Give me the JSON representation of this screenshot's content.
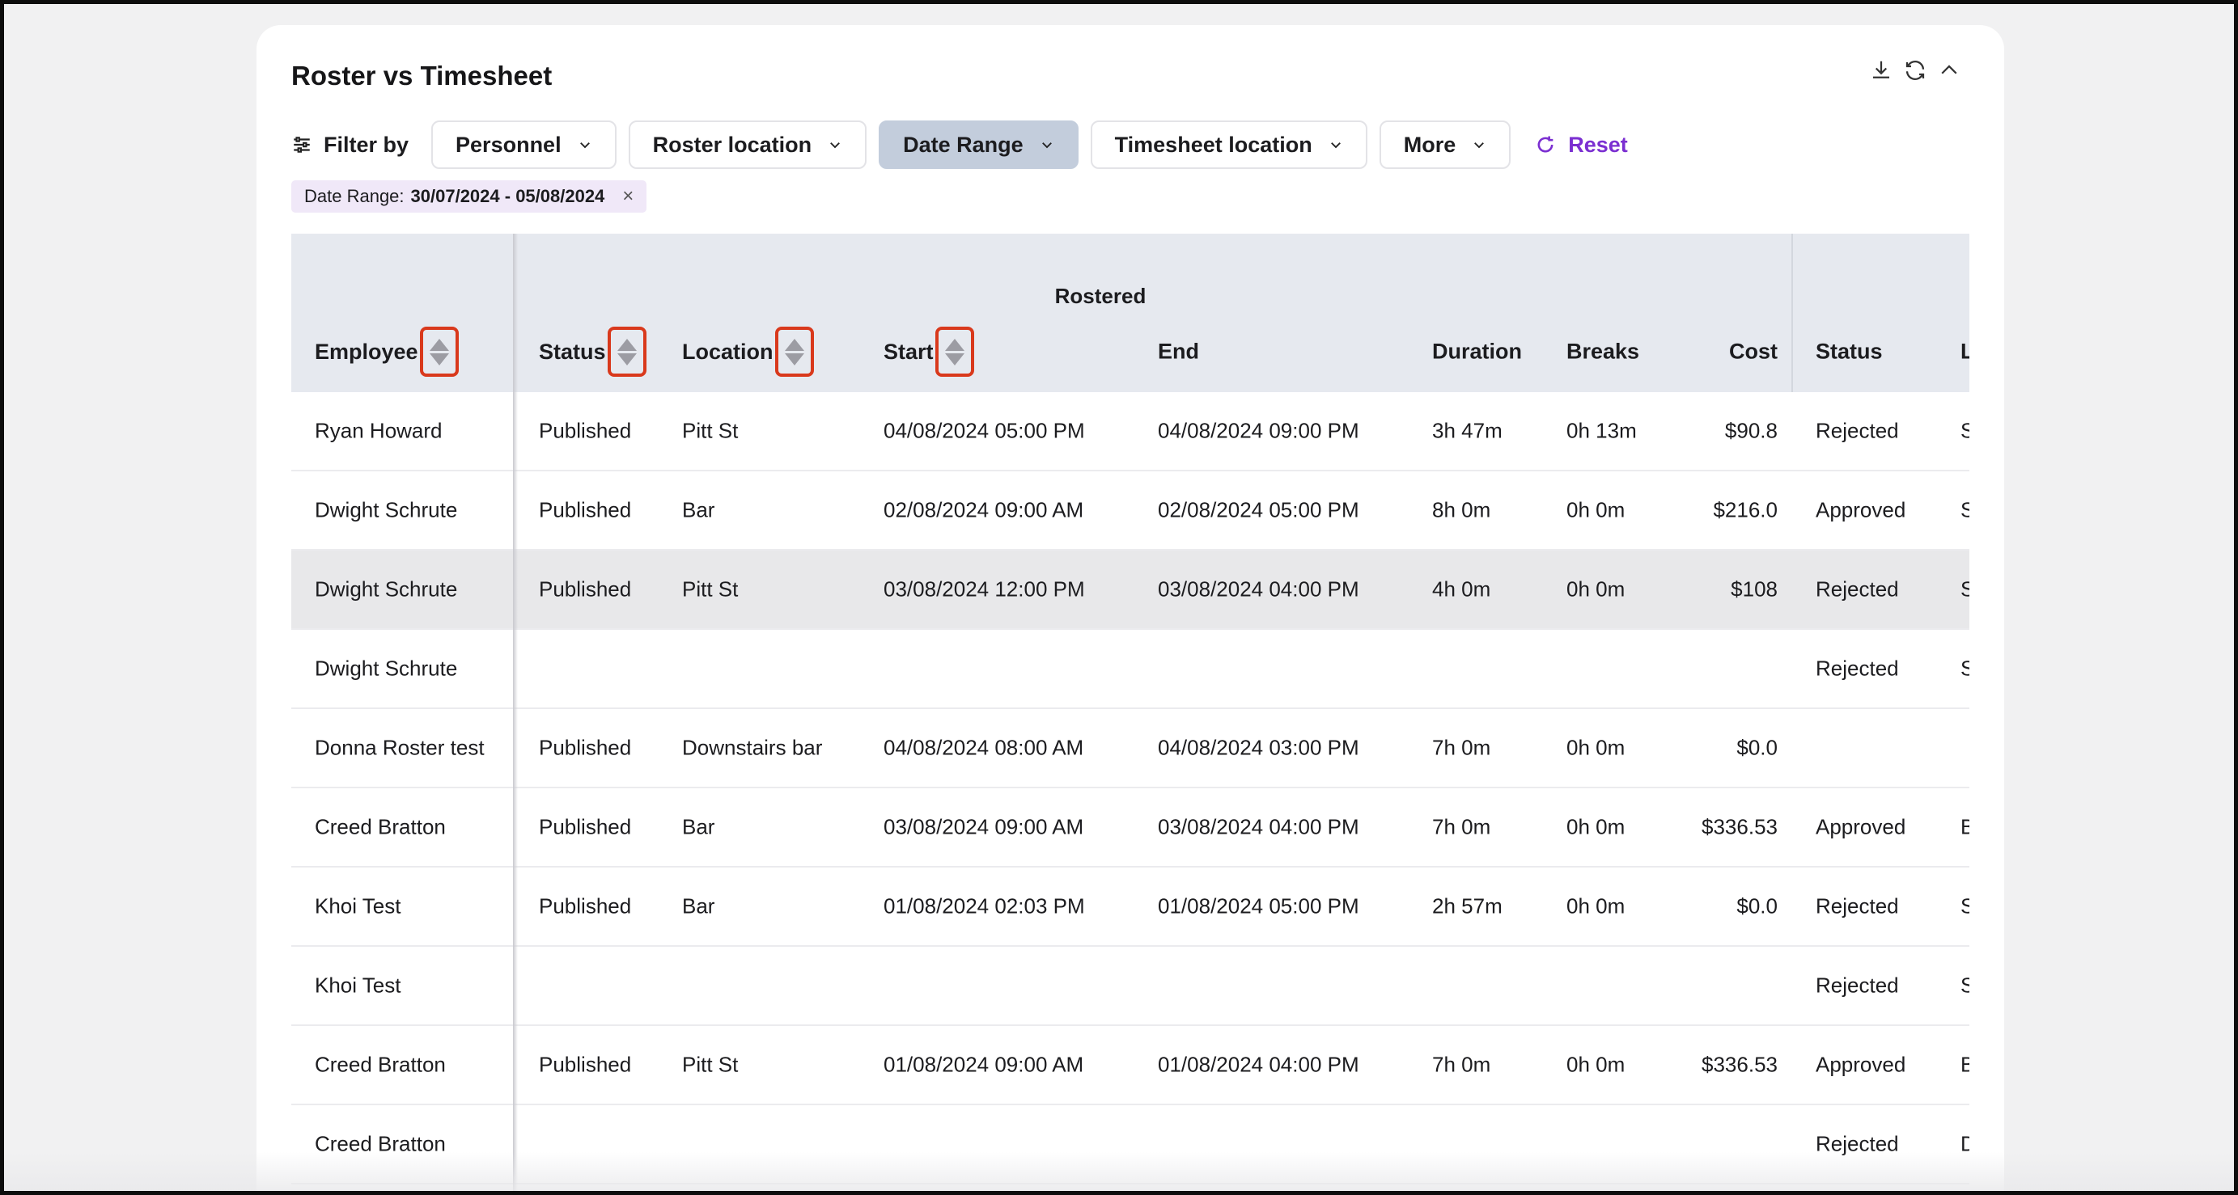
{
  "title": "Roster vs Timesheet",
  "toolbar_icons": [
    "download-icon",
    "refresh-icon",
    "chevron-up-icon"
  ],
  "filter": {
    "label": "Filter by",
    "buttons": [
      {
        "label": "Personnel",
        "active": false
      },
      {
        "label": "Roster location",
        "active": false
      },
      {
        "label": "Date Range",
        "active": true
      },
      {
        "label": "Timesheet location",
        "active": false
      },
      {
        "label": "More",
        "active": false
      }
    ],
    "reset_label": "Reset"
  },
  "chip": {
    "label": "Date Range:",
    "value": "30/07/2024 - 05/08/2024",
    "close": "×"
  },
  "table": {
    "group_header": "Rostered",
    "columns": {
      "employee": "Employee",
      "status": "Status",
      "location": "Location",
      "start": "Start",
      "end": "End",
      "duration": "Duration",
      "breaks": "Breaks",
      "cost": "Cost",
      "ts_status": "Status",
      "ts_location": "L"
    },
    "rows": [
      {
        "employee": "Ryan Howard",
        "status": "Published",
        "location": "Pitt St",
        "start": "04/08/2024 05:00 PM",
        "end": "04/08/2024 09:00 PM",
        "duration": "3h 47m",
        "breaks": "0h 13m",
        "cost": "$90.8",
        "ts_status": "Rejected",
        "ts_location": "S"
      },
      {
        "employee": "Dwight Schrute",
        "status": "Published",
        "location": "Bar",
        "start": "02/08/2024 09:00 AM",
        "end": "02/08/2024 05:00 PM",
        "duration": "8h 0m",
        "breaks": "0h 0m",
        "cost": "$216.0",
        "ts_status": "Approved",
        "ts_location": "S"
      },
      {
        "employee": "Dwight Schrute",
        "status": "Published",
        "location": "Pitt St",
        "start": "03/08/2024 12:00 PM",
        "end": "03/08/2024 04:00 PM",
        "duration": "4h 0m",
        "breaks": "0h 0m",
        "cost": "$108",
        "ts_status": "Rejected",
        "ts_location": "S"
      },
      {
        "employee": "Dwight Schrute",
        "status": "",
        "location": "",
        "start": "",
        "end": "",
        "duration": "",
        "breaks": "",
        "cost": "",
        "ts_status": "Rejected",
        "ts_location": "S"
      },
      {
        "employee": "Donna Roster test",
        "status": "Published",
        "location": "Downstairs bar",
        "start": "04/08/2024 08:00 AM",
        "end": "04/08/2024 03:00 PM",
        "duration": "7h 0m",
        "breaks": "0h 0m",
        "cost": "$0.0",
        "ts_status": "",
        "ts_location": ""
      },
      {
        "employee": "Creed Bratton",
        "status": "Published",
        "location": "Bar",
        "start": "03/08/2024 09:00 AM",
        "end": "03/08/2024 04:00 PM",
        "duration": "7h 0m",
        "breaks": "0h 0m",
        "cost": "$336.53",
        "ts_status": "Approved",
        "ts_location": "B"
      },
      {
        "employee": "Khoi Test",
        "status": "Published",
        "location": "Bar",
        "start": "01/08/2024 02:03 PM",
        "end": "01/08/2024 05:00 PM",
        "duration": "2h 57m",
        "breaks": "0h 0m",
        "cost": "$0.0",
        "ts_status": "Rejected",
        "ts_location": "S"
      },
      {
        "employee": "Khoi Test",
        "status": "",
        "location": "",
        "start": "",
        "end": "",
        "duration": "",
        "breaks": "",
        "cost": "",
        "ts_status": "Rejected",
        "ts_location": "S"
      },
      {
        "employee": "Creed Bratton",
        "status": "Published",
        "location": "Pitt St",
        "start": "01/08/2024 09:00 AM",
        "end": "01/08/2024 04:00 PM",
        "duration": "7h 0m",
        "breaks": "0h 0m",
        "cost": "$336.53",
        "ts_status": "Approved",
        "ts_location": "B"
      },
      {
        "employee": "Creed Bratton",
        "status": "",
        "location": "",
        "start": "",
        "end": "",
        "duration": "",
        "breaks": "",
        "cost": "",
        "ts_status": "Rejected",
        "ts_location": "D"
      }
    ]
  }
}
